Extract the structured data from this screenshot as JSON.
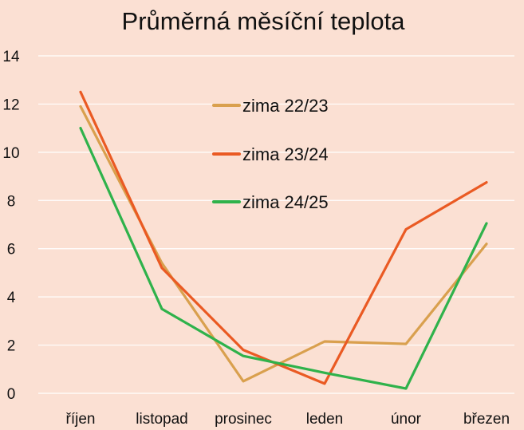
{
  "chart_data": {
    "type": "line",
    "title": "Průměrná měsíční teplota",
    "xlabel": "",
    "ylabel": "",
    "categories": [
      "říjen",
      "listopad",
      "prosinec",
      "leden",
      "únor",
      "březen"
    ],
    "ylim": [
      0,
      14
    ],
    "yticks": [
      0,
      2,
      4,
      6,
      8,
      10,
      12,
      14
    ],
    "grid": true,
    "legend_position": "center",
    "series": [
      {
        "name": "zima 22/23",
        "color": "#d9a04e",
        "values": [
          11.9,
          5.4,
          0.5,
          2.15,
          2.05,
          6.2
        ]
      },
      {
        "name": "zima 23/24",
        "color": "#ea5a23",
        "values": [
          12.5,
          5.2,
          1.8,
          0.4,
          6.8,
          8.75
        ]
      },
      {
        "name": "zima 24/25",
        "color": "#2fb24b",
        "values": [
          11.0,
          3.5,
          1.55,
          0.85,
          0.2,
          7.05
        ]
      }
    ]
  }
}
